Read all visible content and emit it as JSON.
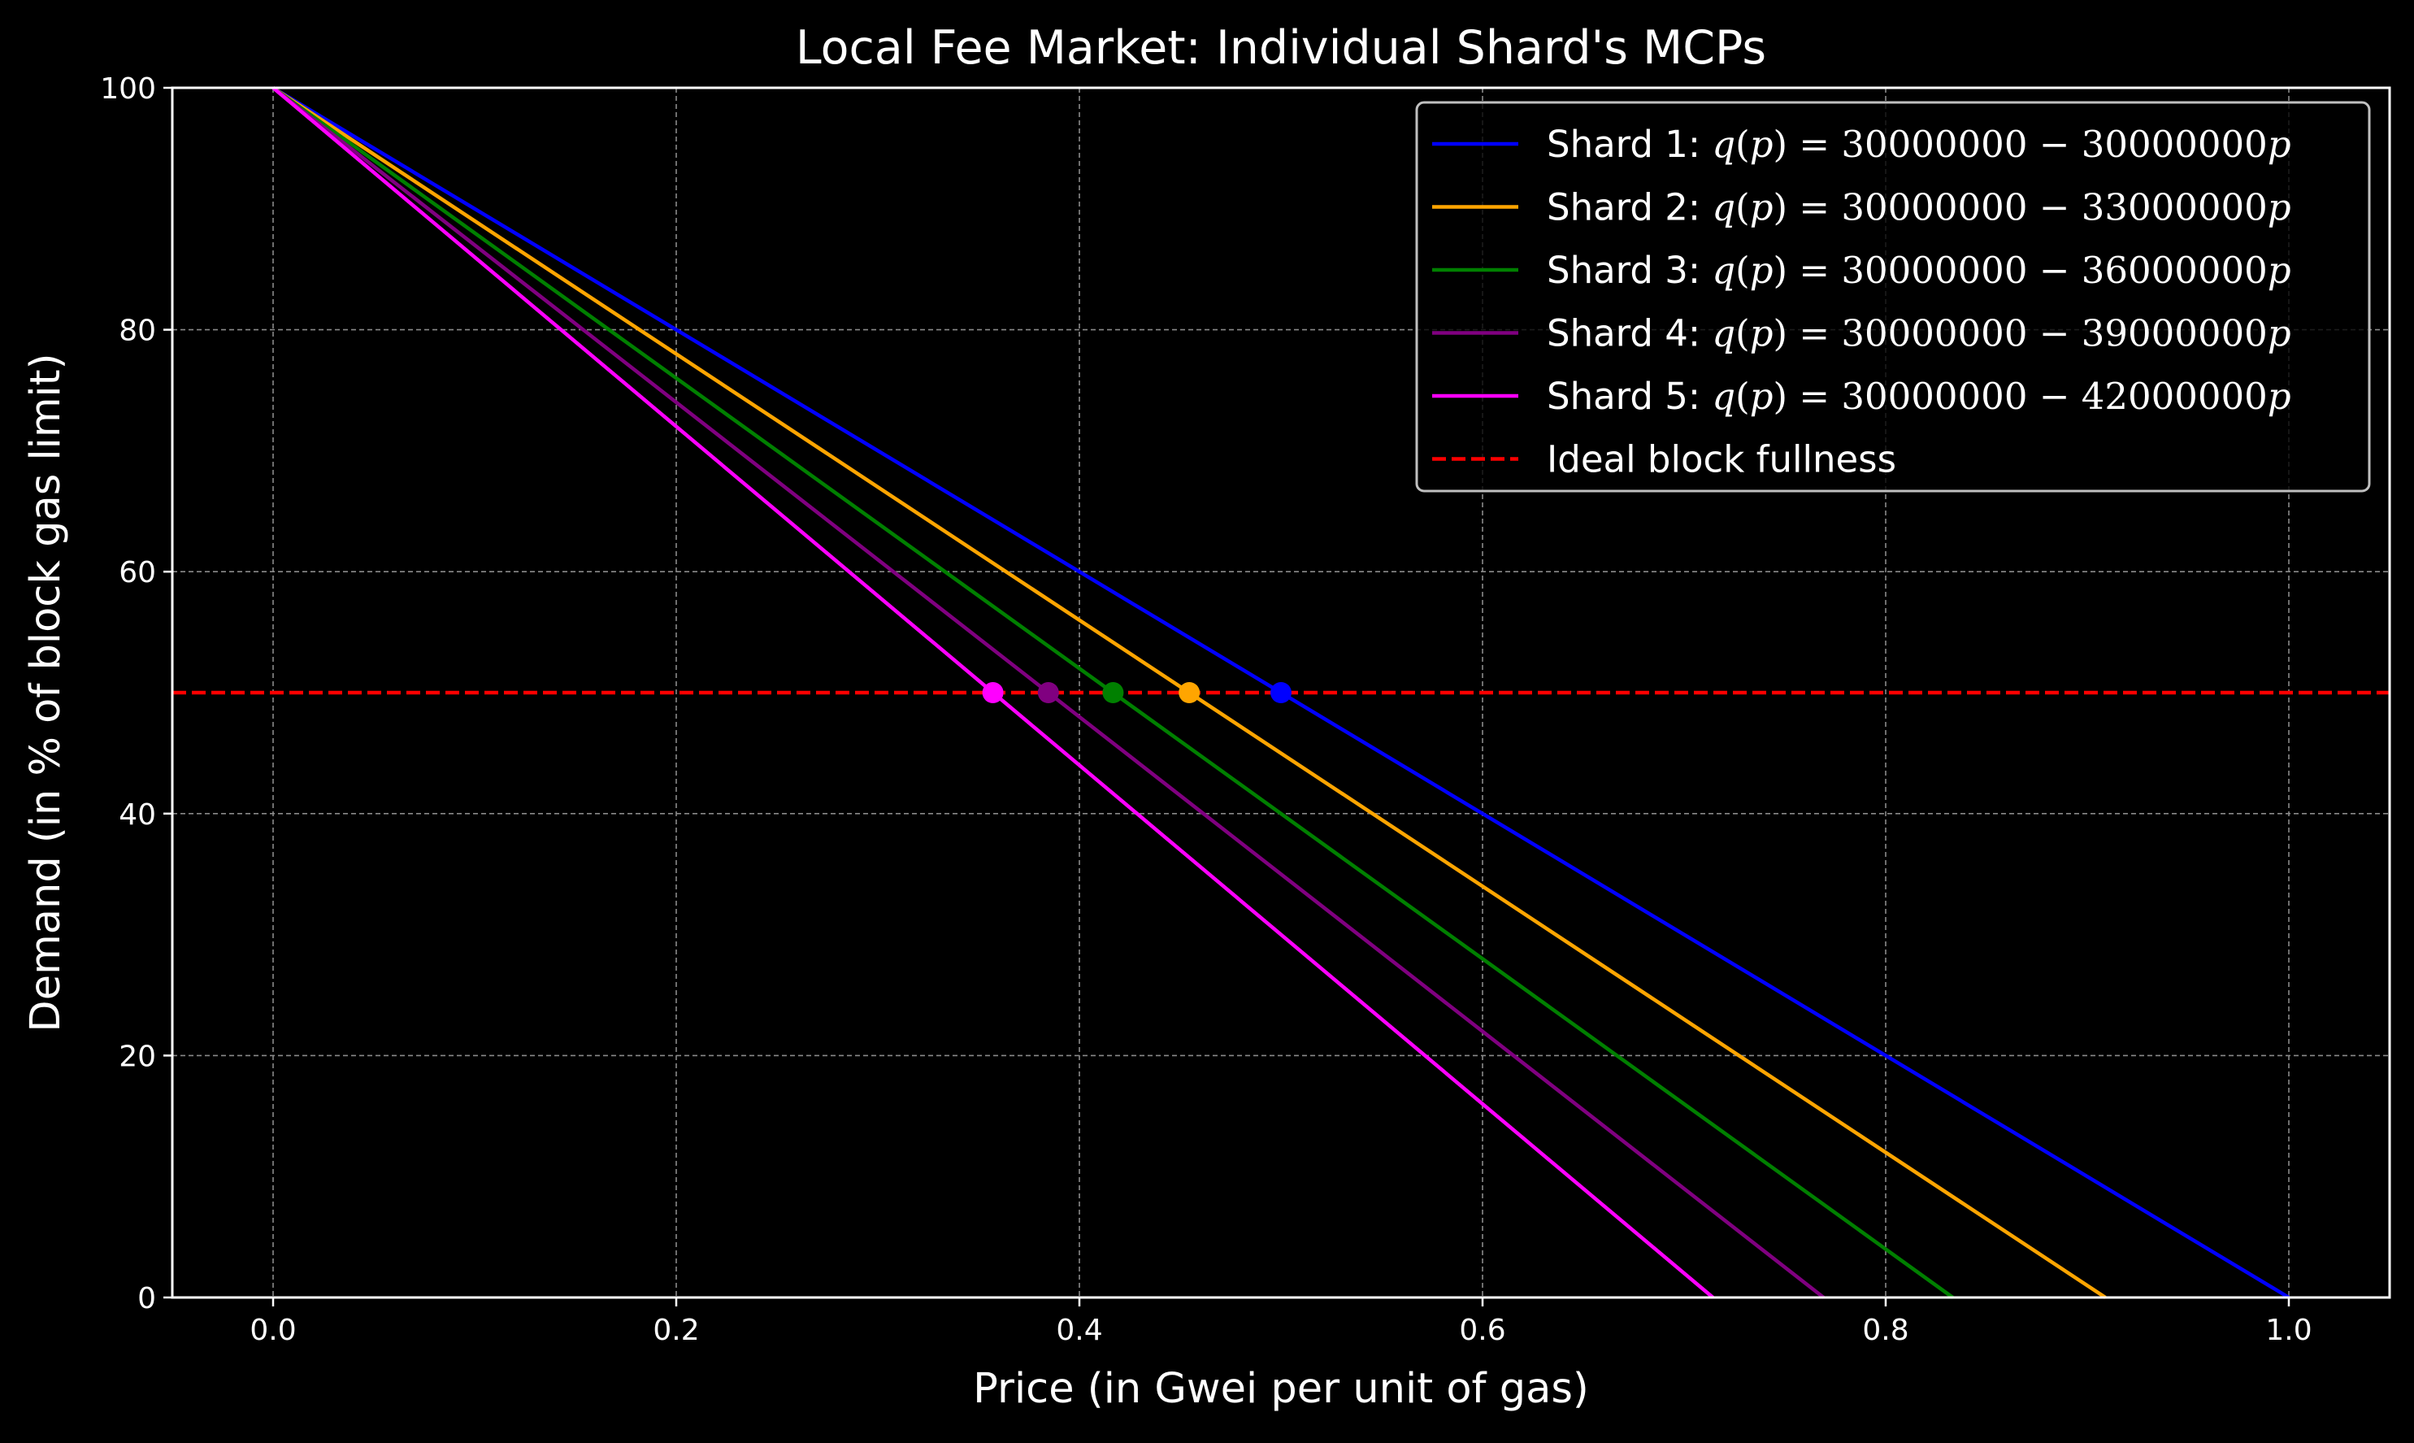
{
  "chart_data": {
    "type": "line",
    "title": "Local Fee Market: Individual Shard's MCPs",
    "xlabel": "Price (in Gwei per unit of gas)",
    "ylabel": "Demand (in % of block gas limit)",
    "xlim": [
      -0.05,
      1.05
    ],
    "ylim": [
      0,
      100
    ],
    "x_ticks": [
      "0.0",
      "0.2",
      "0.4",
      "0.6",
      "0.8",
      "1.0"
    ],
    "x_tick_values": [
      0.0,
      0.2,
      0.4,
      0.6,
      0.8,
      1.0
    ],
    "y_ticks": [
      "0",
      "20",
      "40",
      "60",
      "80",
      "100"
    ],
    "y_tick_values": [
      0,
      20,
      40,
      60,
      80,
      100
    ],
    "grid": true,
    "legend_position": "top-right",
    "background": "#000000",
    "foreground": "#ffffff",
    "series": [
      {
        "name": "Shard 1",
        "legend_prefix": "Shard 1: ",
        "intercept": "30000000",
        "slope": "30000000",
        "color": "#0000ff",
        "x": [
          0.0,
          1.0
        ],
        "y": [
          100,
          0
        ],
        "mcp": [
          0.5,
          50
        ]
      },
      {
        "name": "Shard 2",
        "legend_prefix": "Shard 2: ",
        "intercept": "30000000",
        "slope": "33000000",
        "color": "#ffa500",
        "x": [
          0.0,
          0.909
        ],
        "y": [
          100,
          0
        ],
        "mcp": [
          0.4545,
          50
        ]
      },
      {
        "name": "Shard 3",
        "legend_prefix": "Shard 3: ",
        "intercept": "30000000",
        "slope": "36000000",
        "color": "#008000",
        "x": [
          0.0,
          0.8333
        ],
        "y": [
          100,
          0
        ],
        "mcp": [
          0.4167,
          50
        ]
      },
      {
        "name": "Shard 4",
        "legend_prefix": "Shard 4: ",
        "intercept": "30000000",
        "slope": "39000000",
        "color": "#800080",
        "x": [
          0.0,
          0.7692
        ],
        "y": [
          100,
          0
        ],
        "mcp": [
          0.3846,
          50
        ]
      },
      {
        "name": "Shard 5",
        "legend_prefix": "Shard 5: ",
        "intercept": "30000000",
        "slope": "42000000",
        "color": "#ff00ff",
        "x": [
          0.0,
          0.7143
        ],
        "y": [
          100,
          0
        ],
        "mcp": [
          0.3571,
          50
        ]
      }
    ],
    "reference_line": {
      "name": "Ideal block fullness",
      "y": 50,
      "color": "#ff0000",
      "style": "dashed"
    }
  }
}
